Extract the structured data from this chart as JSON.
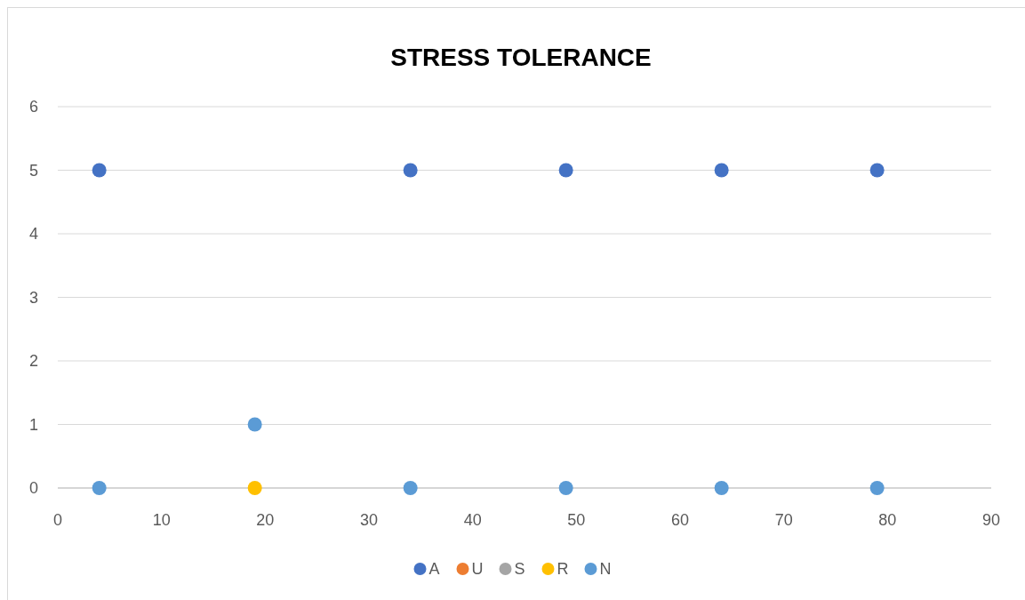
{
  "chart_data": {
    "type": "scatter",
    "title": "STRESS TOLERANCE",
    "x": [
      4,
      19,
      34,
      49,
      64,
      79
    ],
    "series": [
      {
        "name": "A",
        "color": "#4472c4",
        "values": [
          5,
          null,
          5,
          5,
          5,
          5
        ]
      },
      {
        "name": "U",
        "color": "#ed7d31",
        "values": [
          null,
          null,
          null,
          null,
          null,
          null
        ]
      },
      {
        "name": "S",
        "color": "#a5a5a5",
        "values": [
          null,
          null,
          null,
          null,
          null,
          null
        ]
      },
      {
        "name": "R",
        "color": "#ffc000",
        "values": [
          null,
          0,
          null,
          null,
          null,
          null
        ]
      },
      {
        "name": "N",
        "color": "#5b9bd5",
        "values": [
          0,
          1,
          0,
          0,
          0,
          0
        ]
      }
    ],
    "xlim": [
      0,
      90
    ],
    "xticks": [
      0,
      10,
      20,
      30,
      40,
      50,
      60,
      70,
      80,
      90
    ],
    "ylim": [
      0,
      6
    ],
    "yticks": [
      0,
      1,
      2,
      3,
      4,
      5,
      6
    ],
    "grid": "y",
    "legend": "bottom",
    "marker": "circle"
  }
}
